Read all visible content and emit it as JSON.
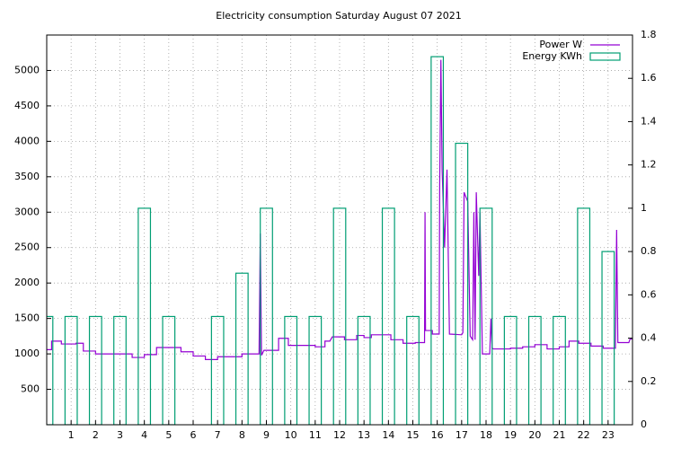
{
  "chart_data": {
    "type": "line",
    "title": "Electricity consumption Saturday August 07 2021",
    "xlim": [
      0,
      24
    ],
    "xticks": [
      1,
      2,
      3,
      4,
      5,
      6,
      7,
      8,
      9,
      10,
      11,
      12,
      13,
      14,
      15,
      16,
      17,
      18,
      19,
      20,
      21,
      22,
      23
    ],
    "ylim": [
      0,
      5500
    ],
    "yticks": [
      500,
      1000,
      1500,
      2000,
      2500,
      3000,
      3500,
      4000,
      4500,
      5000
    ],
    "y2lim": [
      0,
      1.8
    ],
    "y2ticks": [
      0,
      0.2,
      0.4,
      0.6,
      0.8,
      1,
      1.2,
      1.4,
      1.6,
      1.8
    ],
    "grid": true,
    "legend": "top-right",
    "series": [
      {
        "name": "Power W",
        "color": "#9400d3",
        "type": "line",
        "x": [
          0,
          0.2,
          0.2,
          0.6,
          0.6,
          1.2,
          1.2,
          1.5,
          1.5,
          2,
          2,
          3.5,
          3.5,
          4,
          4,
          4.5,
          4.5,
          5.5,
          5.5,
          6,
          6,
          6.5,
          6.5,
          7,
          7,
          8,
          8,
          8.7,
          8.75,
          8.8,
          8.9,
          9.5,
          9.5,
          9.9,
          9.9,
          11,
          11,
          11.4,
          11.4,
          11.6,
          11.7,
          12.2,
          12.2,
          12.7,
          12.7,
          13,
          13,
          13.3,
          13.3,
          14.1,
          14.1,
          14.6,
          14.6,
          15.1,
          15.1,
          15.48,
          15.5,
          15.52,
          15.8,
          15.8,
          16.08,
          16.1,
          16.15,
          16.2,
          16.3,
          16.4,
          16.5,
          17,
          17.05,
          17.1,
          17.25,
          17.35,
          17.45,
          17.5,
          17.55,
          17.6,
          17.7,
          17.75,
          17.85,
          18.15,
          18.2,
          18.25,
          18.3,
          19,
          19,
          19.5,
          19.5,
          20,
          20,
          20.5,
          20.5,
          21,
          21,
          21.4,
          21.4,
          21.8,
          21.8,
          22.3,
          22.3,
          22.8,
          22.8,
          23.3,
          23.35,
          23.4,
          23.85,
          23.9,
          24
        ],
        "values": [
          1060,
          1060,
          1180,
          1180,
          1140,
          1140,
          1150,
          1150,
          1040,
          1040,
          1000,
          1000,
          950,
          950,
          990,
          990,
          1090,
          1090,
          1030,
          1030,
          970,
          970,
          920,
          920,
          960,
          960,
          1000,
          1000,
          2700,
          980,
          1050,
          1050,
          1220,
          1220,
          1120,
          1120,
          1100,
          1100,
          1180,
          1180,
          1240,
          1240,
          1200,
          1200,
          1260,
          1260,
          1230,
          1230,
          1270,
          1270,
          1200,
          1200,
          1150,
          1150,
          1160,
          1160,
          3000,
          1330,
          1330,
          1280,
          1280,
          3350,
          5150,
          3600,
          2500,
          3600,
          1280,
          1270,
          1300,
          3280,
          3150,
          1250,
          1200,
          3000,
          1200,
          3280,
          2100,
          3000,
          1000,
          1000,
          1500,
          1080,
          1070,
          1070,
          1080,
          1080,
          1100,
          1100,
          1130,
          1130,
          1070,
          1070,
          1100,
          1100,
          1180,
          1180,
          1150,
          1150,
          1110,
          1110,
          1080,
          1080,
          2750,
          1160,
          1160,
          1210,
          1210
        ]
      },
      {
        "name": "Energy KWh",
        "color": "#009e73",
        "type": "boxes",
        "axis": "y2",
        "x": [
          0,
          1,
          2,
          3,
          4,
          5,
          6,
          7,
          8,
          9,
          10,
          11,
          12,
          13,
          14,
          15,
          16,
          17,
          18,
          19,
          20,
          21,
          22,
          23
        ],
        "values": [
          0.5,
          0.5,
          0.5,
          0.5,
          1,
          0.5,
          0,
          0.5,
          0.7,
          1,
          0.5,
          0.5,
          1,
          0.5,
          1,
          0.5,
          1.7,
          1.3,
          1,
          0.5,
          0.5,
          0.5,
          1,
          0.8
        ]
      }
    ]
  }
}
